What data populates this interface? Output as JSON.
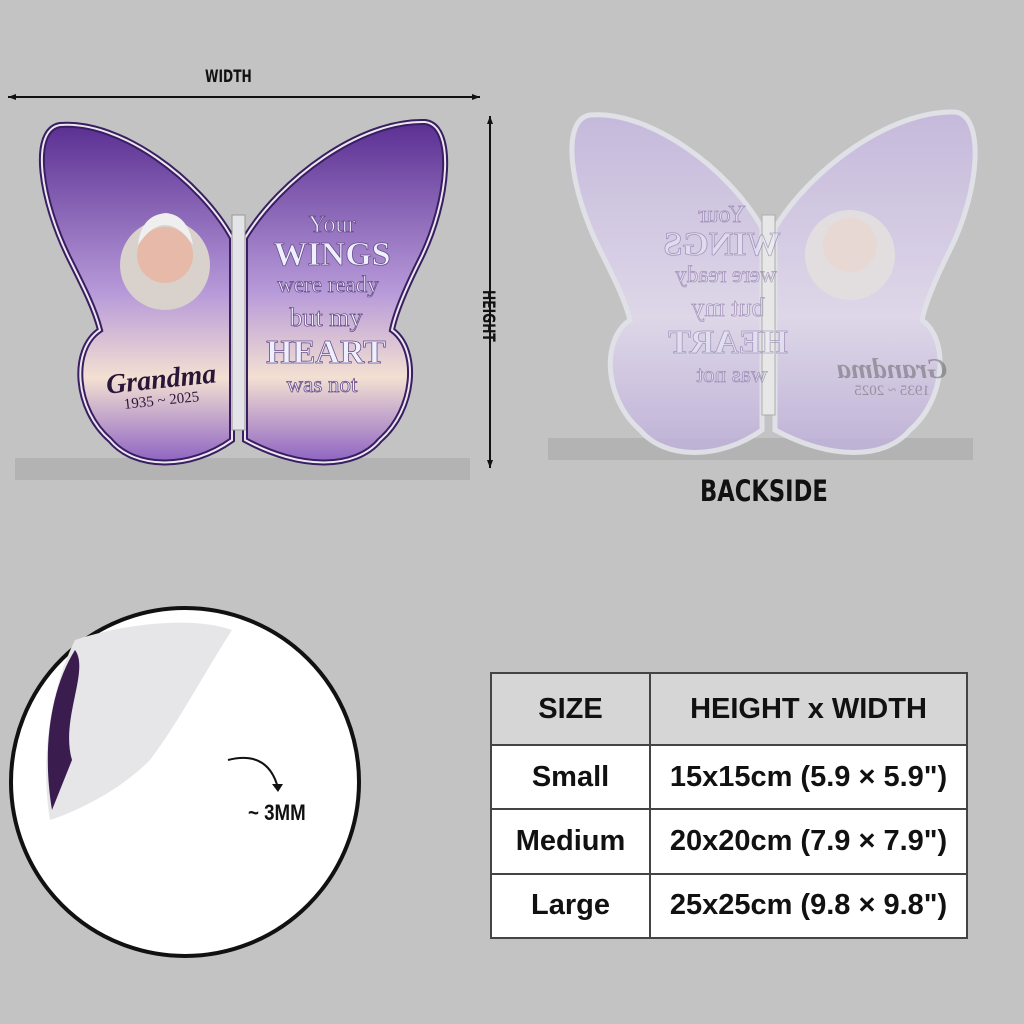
{
  "dimensions": {
    "width_label": "WIDTH",
    "height_label": "HEIGHT"
  },
  "product_front": {
    "name": "Grandma",
    "years": "1935 ~ 2025",
    "quote": [
      "Your",
      "WINGS",
      "were ready",
      "but my",
      "HEART",
      "was not"
    ]
  },
  "backside_label": "BACKSIDE",
  "thickness_label": "~ 3MM",
  "size_table": {
    "headers": [
      "SIZE",
      "HEIGHT x WIDTH"
    ],
    "rows": [
      {
        "size": "Small",
        "dims": "15x15cm (5.9 × 5.9\")"
      },
      {
        "size": "Medium",
        "dims": "20x20cm (7.9 × 7.9\")"
      },
      {
        "size": "Large",
        "dims": "25x25cm (9.8 × 9.8\")"
      }
    ]
  },
  "colors": {
    "background": "#c3c3c3",
    "wing_purple": "#6b3fa0",
    "wing_light": "#c9b6e6",
    "backside_tint": "#cfc3e3"
  }
}
